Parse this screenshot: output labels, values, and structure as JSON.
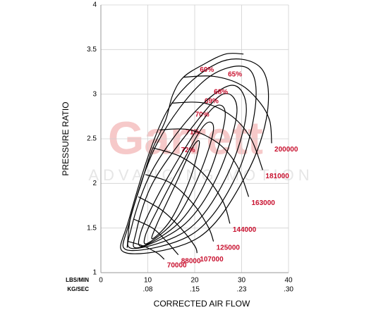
{
  "chart_data": {
    "type": "compressor-map",
    "y_label": "PRESSURE RATIO",
    "x_label": "CORRECTED AIR FLOW",
    "x_unit": "LBS/MIN",
    "x2_unit": "KG/SEC",
    "watermark": [
      "Garrett",
      "ADVANCING MOTION"
    ],
    "xlim": [
      0,
      40
    ],
    "ylim": [
      1,
      4
    ],
    "xticks": [
      0,
      10,
      20,
      30,
      40
    ],
    "x2ticks": [
      {
        "value": 10,
        "label": ".08"
      },
      {
        "value": 20,
        "label": ".15"
      },
      {
        "value": 30,
        "label": ".23"
      },
      {
        "value": 40,
        "label": ".30"
      }
    ],
    "yticks": [
      1,
      1.5,
      2,
      2.5,
      3,
      3.5,
      4
    ],
    "grid": true,
    "line_color": "#000000",
    "label_color": "#c8102e",
    "surge_line": {
      "x": [
        5.6,
        6.3,
        8.6,
        10.8,
        13.8,
        15.3,
        17.6,
        22.1,
        26.6,
        30.4
      ],
      "y": [
        1.28,
        1.61,
        2.0,
        2.36,
        2.71,
        2.99,
        3.19,
        3.34,
        3.45,
        3.45
      ]
    },
    "speed_lines": [
      {
        "name": "70000",
        "x": [
          5.8,
          9,
          12,
          13.5
        ],
        "y": [
          1.35,
          1.3,
          1.22,
          1.15
        ]
      },
      {
        "name": "88000",
        "x": [
          7,
          11,
          14,
          16.5
        ],
        "y": [
          1.6,
          1.5,
          1.35,
          1.2
        ]
      },
      {
        "name": "107000",
        "x": [
          8,
          13,
          17,
          20,
          20.5
        ],
        "y": [
          1.85,
          1.7,
          1.5,
          1.3,
          1.22
        ]
      },
      {
        "name": "125000",
        "x": [
          9.5,
          15,
          20,
          23,
          24
        ],
        "y": [
          2.1,
          2.0,
          1.75,
          1.5,
          1.35
        ]
      },
      {
        "name": "144000",
        "x": [
          11,
          17,
          22,
          26,
          27.5
        ],
        "y": [
          2.4,
          2.3,
          2.1,
          1.8,
          1.55
        ]
      },
      {
        "name": "163000",
        "x": [
          12.5,
          19,
          25,
          29,
          31.5
        ],
        "y": [
          2.6,
          2.6,
          2.45,
          2.2,
          1.85
        ]
      },
      {
        "name": "181000",
        "x": [
          15,
          22,
          28,
          32,
          34.5
        ],
        "y": [
          2.9,
          2.9,
          2.75,
          2.5,
          2.15
        ]
      },
      {
        "name": "200000",
        "x": [
          17.6,
          24,
          30,
          34,
          36,
          36.4
        ],
        "y": [
          3.19,
          3.2,
          3.1,
          2.9,
          2.7,
          2.45
        ]
      }
    ],
    "efficiency_islands": [
      {
        "name": "72%",
        "x": [
          11,
          15,
          19,
          21,
          19.5,
          16,
          12
        ],
        "y": [
          1.38,
          1.6,
          2.05,
          2.45,
          2.4,
          2.0,
          1.55
        ]
      },
      {
        "name": "71%",
        "x": [
          10,
          16,
          21,
          24,
          22,
          17,
          12,
          9.5
        ],
        "y": [
          1.33,
          1.6,
          2.1,
          2.6,
          2.65,
          2.2,
          1.7,
          1.42
        ]
      },
      {
        "name": "70%",
        "x": [
          9,
          17,
          23,
          26.5,
          24,
          18,
          12,
          8.5
        ],
        "y": [
          1.3,
          1.58,
          2.1,
          2.75,
          2.85,
          2.4,
          1.85,
          1.45
        ]
      },
      {
        "name": "69%",
        "x": [
          8,
          18,
          25,
          29,
          26,
          19,
          11,
          7.5
        ],
        "y": [
          1.28,
          1.55,
          2.1,
          2.8,
          3.0,
          2.6,
          2.0,
          1.45
        ]
      },
      {
        "name": "68%",
        "x": [
          7,
          19,
          27,
          31,
          28,
          20,
          11,
          6.5
        ],
        "y": [
          1.27,
          1.5,
          2.1,
          2.8,
          3.1,
          2.8,
          2.15,
          1.5
        ]
      },
      {
        "name": "65%",
        "x": [
          6,
          20,
          29,
          33,
          31,
          22,
          12,
          6
        ],
        "y": [
          1.25,
          1.45,
          2.1,
          2.9,
          3.3,
          3.15,
          2.45,
          1.55
        ]
      },
      {
        "name": "60%",
        "x": [
          5.5,
          21,
          31,
          35.5,
          34,
          25,
          14,
          6
        ],
        "y": [
          1.22,
          1.4,
          2.1,
          2.8,
          3.3,
          3.35,
          2.8,
          1.6
        ]
      }
    ]
  }
}
